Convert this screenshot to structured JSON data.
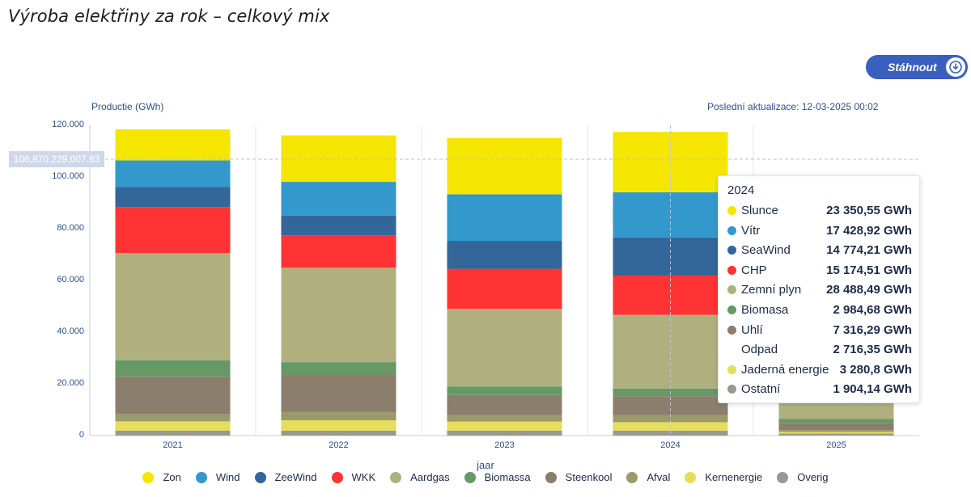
{
  "title": "Výroba elektřiny za rok – celkový mix",
  "download": {
    "label": "Stáhnout",
    "icon": "download-icon"
  },
  "ylabel": "Productie (GWh)",
  "updated": "Poslední aktualizace: 12-03-2025 00:02",
  "crosshair_value": "106,870,229,007.63",
  "colors": {
    "Zon": "#f5e600",
    "Wind": "#3399cc",
    "ZeeWind": "#336699",
    "WKK": "#ff3333",
    "Aardgas": "#b0b07f",
    "Biomassa": "#669966",
    "Steenkool": "#8c7e6d",
    "Afval": "#9a9a6a",
    "Kernenergie": "#e6dd5a",
    "Overig": "#999990"
  },
  "chart_data": {
    "type": "bar",
    "stacked": true,
    "categories": [
      "2021",
      "2022",
      "2023",
      "2024",
      "2025"
    ],
    "xlabel": "jaar",
    "ylabel": "Productie (GWh)",
    "ylim": [
      0,
      120000
    ],
    "yticks": [
      "0",
      "20.000",
      "40.000",
      "60.000",
      "80.000",
      "100.000",
      "120.000"
    ],
    "ytick_values": [
      0,
      20000,
      40000,
      60000,
      80000,
      100000,
      120000
    ],
    "legend_position": "bottom",
    "series": [
      {
        "name": "Overig",
        "values": [
          1900,
          1900,
          1900,
          1904.14,
          800
        ]
      },
      {
        "name": "Kernenergie",
        "values": [
          3600,
          4000,
          3500,
          3280.8,
          600
        ]
      },
      {
        "name": "Afval",
        "values": [
          2900,
          3200,
          2500,
          2716.35,
          700
        ]
      },
      {
        "name": "Steenkool",
        "values": [
          14500,
          14500,
          7800,
          7316.29,
          2800
        ]
      },
      {
        "name": "Biomassa",
        "values": [
          6200,
          4800,
          3300,
          2984.68,
          1500
        ]
      },
      {
        "name": "Aardgas",
        "values": [
          41500,
          36500,
          30000,
          28488.49,
          13500
        ]
      },
      {
        "name": "WKK",
        "values": [
          17800,
          12500,
          15500,
          15174.51,
          0
        ]
      },
      {
        "name": "ZeeWind",
        "values": [
          7800,
          7700,
          10800,
          14774.21,
          0
        ]
      },
      {
        "name": "Wind",
        "values": [
          10200,
          13000,
          18000,
          17428.92,
          0
        ]
      },
      {
        "name": "Zon",
        "values": [
          12000,
          18000,
          21800,
          23350.55,
          0
        ]
      }
    ]
  },
  "tooltip": {
    "year": "2024",
    "rows": [
      {
        "name": "Slunce",
        "value": "23 350,55 GWh",
        "color": "#f5e600"
      },
      {
        "name": "Vítr",
        "value": "17 428,92 GWh",
        "color": "#3399cc"
      },
      {
        "name": "SeaWind",
        "value": "14 774,21 GWh",
        "color": "#336699"
      },
      {
        "name": "CHP",
        "value": "15 174,51 GWh",
        "color": "#ff3333"
      },
      {
        "name": "Zemní plyn",
        "value": "28 488,49 GWh",
        "color": "#b0b07f"
      },
      {
        "name": "Biomasa",
        "value": "2 984,68 GWh",
        "color": "#669966"
      },
      {
        "name": "Uhlí",
        "value": "7 316,29 GWh",
        "color": "#8c7e6d"
      },
      {
        "name": "Odpad",
        "value": "2 716,35 GWh",
        "color": ""
      },
      {
        "name": "Jaderná energie",
        "value": "3 280,8 GWh",
        "color": "#e6dd5a"
      },
      {
        "name": "Ostatní",
        "value": "1 904,14 GWh",
        "color": "#999990"
      }
    ]
  },
  "legend": [
    "Zon",
    "Wind",
    "ZeeWind",
    "WKK",
    "Aardgas",
    "Biomassa",
    "Steenkool",
    "Afval",
    "Kernenergie",
    "Overig"
  ]
}
